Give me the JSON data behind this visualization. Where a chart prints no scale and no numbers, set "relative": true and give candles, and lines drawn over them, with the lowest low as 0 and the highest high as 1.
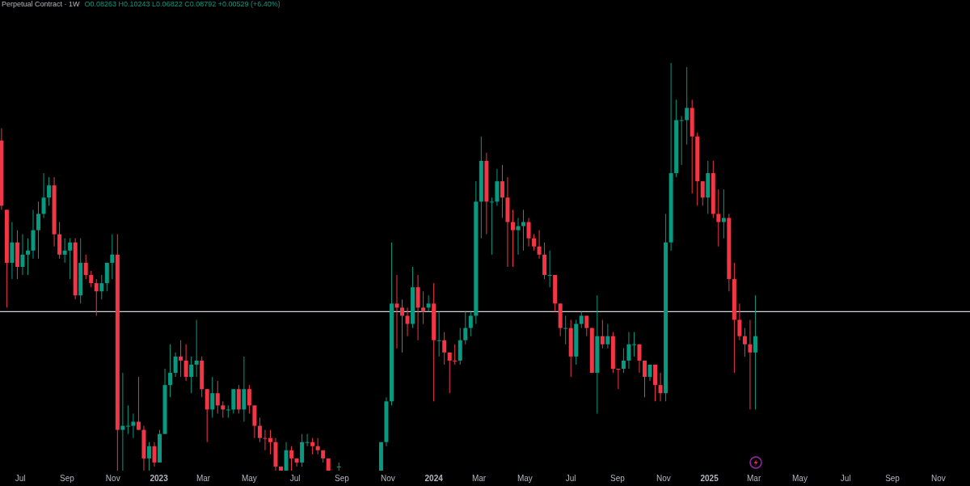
{
  "chart_data": {
    "type": "candlestick",
    "title": "Perpetual Contract · 1W",
    "subtitle": "O0.08263 H0.10243 L0.06822 C0.08792 +0.00529 (+6.40%)",
    "relative": true,
    "tick_labels": "x",
    "grid": false,
    "x": [
      "2022-06-06",
      "2022-06-13",
      "2022-06-20",
      "2022-06-27",
      "2022-07-04",
      "2022-07-11",
      "2022-07-18",
      "2022-07-25",
      "2022-08-01",
      "2022-08-08",
      "2022-08-15",
      "2022-08-22",
      "2022-08-29",
      "2022-09-05",
      "2022-09-12",
      "2022-09-19",
      "2022-09-26",
      "2022-10-03",
      "2022-10-10",
      "2022-10-17",
      "2022-10-24",
      "2022-10-31",
      "2022-11-07",
      "2022-11-14",
      "2022-11-21",
      "2022-11-28",
      "2022-12-05",
      "2022-12-12",
      "2022-12-19",
      "2022-12-26",
      "2023-01-02",
      "2023-01-09",
      "2023-01-16",
      "2023-01-23",
      "2023-01-30",
      "2023-02-06",
      "2023-02-13",
      "2023-02-20",
      "2023-02-27",
      "2023-03-06",
      "2023-03-13",
      "2023-03-20",
      "2023-03-27",
      "2023-04-03",
      "2023-04-10",
      "2023-04-17",
      "2023-04-24",
      "2023-05-01",
      "2023-05-08",
      "2023-05-15",
      "2023-05-22",
      "2023-05-29",
      "2023-06-05",
      "2023-06-12",
      "2023-06-19",
      "2023-06-26",
      "2023-07-03",
      "2023-07-10",
      "2023-07-17",
      "2023-07-24",
      "2023-07-31",
      "2023-08-07",
      "2023-08-14",
      "2023-08-28",
      "2023-10-23",
      "2023-10-30",
      "2023-11-06",
      "2023-11-13",
      "2023-11-20",
      "2023-11-27",
      "2023-12-04",
      "2023-12-11",
      "2023-12-18",
      "2023-12-25",
      "2024-01-01",
      "2024-01-08",
      "2024-01-15",
      "2024-01-22",
      "2024-01-29",
      "2024-02-05",
      "2024-02-12",
      "2024-02-19",
      "2024-02-26",
      "2024-03-04",
      "2024-03-11",
      "2024-03-18",
      "2024-03-25",
      "2024-04-01",
      "2024-04-08",
      "2024-04-15",
      "2024-04-22",
      "2024-04-29",
      "2024-05-06",
      "2024-05-13",
      "2024-05-20",
      "2024-05-27",
      "2024-06-03",
      "2024-06-10",
      "2024-06-17",
      "2024-06-24",
      "2024-07-01",
      "2024-07-08",
      "2024-07-15",
      "2024-07-22",
      "2024-07-29",
      "2024-08-05",
      "2024-08-12",
      "2024-08-19",
      "2024-08-26",
      "2024-09-02",
      "2024-09-09",
      "2024-09-16",
      "2024-09-23",
      "2024-09-30",
      "2024-10-07",
      "2024-10-14",
      "2024-10-21",
      "2024-10-28",
      "2024-11-04",
      "2024-11-11",
      "2024-11-18",
      "2024-11-25",
      "2024-12-02",
      "2024-12-09",
      "2024-12-16",
      "2024-12-23",
      "2024-12-30",
      "2025-01-06",
      "2025-01-13",
      "2025-01-20",
      "2025-01-27",
      "2025-02-03",
      "2025-02-10",
      "2025-02-17",
      "2025-02-24",
      "2025-03-03"
    ],
    "ohlc": [
      [
        0.81,
        0.84,
        0.64,
        0.65
      ],
      [
        0.64,
        0.64,
        0.4,
        0.51
      ],
      [
        0.51,
        0.61,
        0.47,
        0.56
      ],
      [
        0.56,
        0.59,
        0.47,
        0.5
      ],
      [
        0.5,
        0.58,
        0.48,
        0.53
      ],
      [
        0.53,
        0.57,
        0.48,
        0.54
      ],
      [
        0.54,
        0.64,
        0.52,
        0.59
      ],
      [
        0.59,
        0.66,
        0.52,
        0.63
      ],
      [
        0.63,
        0.73,
        0.62,
        0.67
      ],
      [
        0.67,
        0.72,
        0.65,
        0.7
      ],
      [
        0.7,
        0.72,
        0.55,
        0.58
      ],
      [
        0.58,
        0.61,
        0.52,
        0.53
      ],
      [
        0.53,
        0.57,
        0.51,
        0.54
      ],
      [
        0.54,
        0.57,
        0.47,
        0.56
      ],
      [
        0.56,
        0.57,
        0.42,
        0.43
      ],
      [
        0.43,
        0.57,
        0.41,
        0.51
      ],
      [
        0.51,
        0.53,
        0.47,
        0.48
      ],
      [
        0.48,
        0.49,
        0.45,
        0.46
      ],
      [
        0.46,
        0.47,
        0.38,
        0.44
      ],
      [
        0.44,
        0.48,
        0.42,
        0.46
      ],
      [
        0.46,
        0.51,
        0.44,
        0.51
      ],
      [
        0.51,
        0.58,
        0.47,
        0.53
      ],
      [
        0.53,
        0.58,
        0,
        0.1
      ],
      [
        0.1,
        0.24,
        0,
        0.11
      ],
      [
        0.11,
        0.16,
        0.09,
        0.11
      ],
      [
        0.11,
        0.14,
        0.08,
        0.12
      ],
      [
        0.12,
        0.23,
        0.1,
        0.1
      ],
      [
        0.1,
        0.11,
        0,
        0.03
      ],
      [
        0.03,
        0.07,
        0,
        0.06
      ],
      [
        0.06,
        0.07,
        0.01,
        0.02
      ],
      [
        0.02,
        0.1,
        0.02,
        0.09
      ],
      [
        0.09,
        0.25,
        0.09,
        0.21
      ],
      [
        0.21,
        0.31,
        0.18,
        0.24
      ],
      [
        0.24,
        0.29,
        0.23,
        0.28
      ],
      [
        0.28,
        0.32,
        0.23,
        0.27
      ],
      [
        0.27,
        0.31,
        0.22,
        0.23
      ],
      [
        0.23,
        0.28,
        0.19,
        0.26
      ],
      [
        0.26,
        0.37,
        0.23,
        0.27
      ],
      [
        0.27,
        0.28,
        0.18,
        0.2
      ],
      [
        0.2,
        0.2,
        0.07,
        0.15
      ],
      [
        0.15,
        0.23,
        0.13,
        0.19
      ],
      [
        0.19,
        0.22,
        0.14,
        0.16
      ],
      [
        0.16,
        0.17,
        0.13,
        0.15
      ],
      [
        0.15,
        0.16,
        0.13,
        0.15
      ],
      [
        0.15,
        0.2,
        0.14,
        0.2
      ],
      [
        0.2,
        0.21,
        0.14,
        0.15
      ],
      [
        0.15,
        0.28,
        0.12,
        0.2
      ],
      [
        0.2,
        0.21,
        0.14,
        0.16
      ],
      [
        0.16,
        0.16,
        0.08,
        0.11
      ],
      [
        0.11,
        0.13,
        0.07,
        0.08
      ],
      [
        0.08,
        0.1,
        0.05,
        0.08
      ],
      [
        0.08,
        0.1,
        0.04,
        0.07
      ],
      [
        0.07,
        0.08,
        0,
        0.01
      ],
      [
        0.01,
        0.01,
        0,
        0
      ],
      [
        0,
        0.07,
        0,
        0.05
      ],
      [
        0.05,
        0.06,
        0,
        0.03
      ],
      [
        0.03,
        0.03,
        0.01,
        0.02
      ],
      [
        0.02,
        0.09,
        0.01,
        0.07
      ],
      [
        0.07,
        0.09,
        0.06,
        0.07
      ],
      [
        0.07,
        0.08,
        0.04,
        0.06
      ],
      [
        0.06,
        0.08,
        0.04,
        0.05
      ],
      [
        0.05,
        0.05,
        0.02,
        0.03
      ],
      [
        0.03,
        0.03,
        0,
        0
      ],
      [
        0.01,
        0.02,
        0,
        0.01
      ],
      [
        0,
        0.07,
        0,
        0.07
      ],
      [
        0.07,
        0.18,
        0.06,
        0.17
      ],
      [
        0.17,
        0.56,
        0.16,
        0.41
      ],
      [
        0.41,
        0.48,
        0.3,
        0.4
      ],
      [
        0.4,
        0.42,
        0.29,
        0.38
      ],
      [
        0.38,
        0.4,
        0.33,
        0.36
      ],
      [
        0.36,
        0.5,
        0.35,
        0.45
      ],
      [
        0.45,
        0.48,
        0.32,
        0.4
      ],
      [
        0.4,
        0.44,
        0.36,
        0.39
      ],
      [
        0.4,
        0.43,
        0.39,
        0.41
      ],
      [
        0.41,
        0.46,
        0.17,
        0.32
      ],
      [
        0.32,
        0.39,
        0.28,
        0.32
      ],
      [
        0.32,
        0.34,
        0.26,
        0.29
      ],
      [
        0.29,
        0.29,
        0.19,
        0.27
      ],
      [
        0.27,
        0.31,
        0.26,
        0.27
      ],
      [
        0.27,
        0.35,
        0.26,
        0.32
      ],
      [
        0.32,
        0.39,
        0.31,
        0.35
      ],
      [
        0.35,
        0.39,
        0.33,
        0.38
      ],
      [
        0.38,
        0.71,
        0.36,
        0.66
      ],
      [
        0.66,
        0.82,
        0.57,
        0.76
      ],
      [
        0.76,
        0.78,
        0.58,
        0.66
      ],
      [
        0.66,
        0.67,
        0.53,
        0.66
      ],
      [
        0.66,
        0.74,
        0.65,
        0.71
      ],
      [
        0.71,
        0.75,
        0.62,
        0.67
      ],
      [
        0.67,
        0.72,
        0.5,
        0.61
      ],
      [
        0.61,
        0.64,
        0.5,
        0.59
      ],
      [
        0.59,
        0.62,
        0.53,
        0.6
      ],
      [
        0.6,
        0.64,
        0.54,
        0.61
      ],
      [
        0.61,
        0.62,
        0.55,
        0.57
      ],
      [
        0.57,
        0.58,
        0.54,
        0.55
      ],
      [
        0.55,
        0.59,
        0.52,
        0.53
      ],
      [
        0.53,
        0.56,
        0.47,
        0.48
      ],
      [
        0.48,
        0.54,
        0.45,
        0.48
      ],
      [
        0.48,
        0.48,
        0.39,
        0.41
      ],
      [
        0.41,
        0.41,
        0.33,
        0.35
      ],
      [
        0.35,
        0.38,
        0.31,
        0.35
      ],
      [
        0.35,
        0.37,
        0.23,
        0.28
      ],
      [
        0.28,
        0.37,
        0.26,
        0.36
      ],
      [
        0.36,
        0.39,
        0.35,
        0.38
      ],
      [
        0.38,
        0.38,
        0.33,
        0.35
      ],
      [
        0.35,
        0.35,
        0.24,
        0.24
      ],
      [
        0.24,
        0.43,
        0.14,
        0.33
      ],
      [
        0.33,
        0.37,
        0.3,
        0.31
      ],
      [
        0.31,
        0.36,
        0.3,
        0.33
      ],
      [
        0.33,
        0.34,
        0.24,
        0.25
      ],
      [
        0.25,
        0.25,
        0.2,
        0.25
      ],
      [
        0.25,
        0.3,
        0.24,
        0.27
      ],
      [
        0.27,
        0.34,
        0.25,
        0.31
      ],
      [
        0.31,
        0.34,
        0.28,
        0.31
      ],
      [
        0.31,
        0.31,
        0.24,
        0.27
      ],
      [
        0.27,
        0.27,
        0.18,
        0.23
      ],
      [
        0.23,
        0.26,
        0.22,
        0.26
      ],
      [
        0.26,
        0.26,
        0.17,
        0.21
      ],
      [
        0.21,
        0.24,
        0.17,
        0.19
      ],
      [
        0.19,
        0.63,
        0.17,
        0.56
      ],
      [
        0.56,
        1,
        0.54,
        0.73
      ],
      [
        0.73,
        0.91,
        0.72,
        0.86
      ],
      [
        0.86,
        0.87,
        0.75,
        0.86
      ],
      [
        0.86,
        0.99,
        0.8,
        0.89
      ],
      [
        0.89,
        0.91,
        0.68,
        0.82
      ],
      [
        0.82,
        0.83,
        0.65,
        0.71
      ],
      [
        0.71,
        0.71,
        0.65,
        0.67
      ],
      [
        0.67,
        0.76,
        0.63,
        0.73
      ],
      [
        0.73,
        0.76,
        0.62,
        0.63
      ],
      [
        0.63,
        0.69,
        0.55,
        0.61
      ],
      [
        0.61,
        0.69,
        0.57,
        0.62
      ],
      [
        0.62,
        0.63,
        0.44,
        0.47
      ],
      [
        0.47,
        0.51,
        0.24,
        0.37
      ],
      [
        0.37,
        0.41,
        0.32,
        0.33
      ],
      [
        0.33,
        0.35,
        0.28,
        0.31
      ],
      [
        0.31,
        0.37,
        0.15,
        0.29
      ],
      [
        0.29,
        0.43,
        0.15,
        0.33
      ]
    ],
    "colors": [
      "#f23645",
      "#f23645",
      "#089981",
      "#f23645",
      "#089981",
      "#089981",
      "#089981",
      "#089981",
      "#089981",
      "#089981",
      "#f23645",
      "#f23645",
      "#089981",
      "#089981",
      "#f23645",
      "#089981",
      "#f23645",
      "#f23645",
      "#f23645",
      "#089981",
      "#089981",
      "#089981",
      "#f23645",
      "#089981",
      "#089981",
      "#089981",
      "#f23645",
      "#f23645",
      "#089981",
      "#f23645",
      "#089981",
      "#089981",
      "#089981",
      "#089981",
      "#f23645",
      "#f23645",
      "#089981",
      "#089981",
      "#f23645",
      "#f23645",
      "#089981",
      "#f23645",
      "#f23645",
      "#089981",
      "#089981",
      "#f23645",
      "#089981",
      "#f23645",
      "#f23645",
      "#f23645",
      "#f23645",
      "#f23645",
      "#f23645",
      "#f23645",
      "#089981",
      "#f23645",
      "#f23645",
      "#089981",
      "#089981",
      "#f23645",
      "#f23645",
      "#f23645",
      "#f23645",
      "#089981",
      "#089981",
      "#089981",
      "#089981",
      "#f23645",
      "#f23645",
      "#f23645",
      "#089981",
      "#f23645",
      "#f23645",
      "#089981",
      "#f23645",
      "#089981",
      "#f23645",
      "#f23645",
      "#f23645",
      "#089981",
      "#089981",
      "#089981",
      "#089981",
      "#089981",
      "#f23645",
      "#089981",
      "#089981",
      "#f23645",
      "#f23645",
      "#f23645",
      "#089981",
      "#089981",
      "#f23645",
      "#f23645",
      "#f23645",
      "#f23645",
      "#089981",
      "#f23645",
      "#f23645",
      "#089981",
      "#f23645",
      "#089981",
      "#089981",
      "#f23645",
      "#f23645",
      "#089981",
      "#f23645",
      "#089981",
      "#f23645",
      "#f23645",
      "#089981",
      "#089981",
      "#089981",
      "#f23645",
      "#f23645",
      "#089981",
      "#f23645",
      "#f23645",
      "#089981",
      "#089981",
      "#089981",
      "#089981",
      "#089981",
      "#f23645",
      "#f23645",
      "#f23645",
      "#089981",
      "#f23645",
      "#f23645",
      "#089981",
      "#f23645",
      "#f23645",
      "#f23645",
      "#f23645",
      "#f23645",
      "#089981"
    ],
    "xlim": [
      "2022-06-04",
      "2025-12-13"
    ],
    "xticks": [
      {
        "value": "2022-07-01",
        "label": "Jul"
      },
      {
        "value": "2022-09-01",
        "label": "Sep"
      },
      {
        "value": "2022-11-01",
        "label": "Nov"
      },
      {
        "value": "2023-01-01",
        "label": "2023"
      },
      {
        "value": "2023-03-01",
        "label": "Mar"
      },
      {
        "value": "2023-05-01",
        "label": "May"
      },
      {
        "value": "2023-07-01",
        "label": "Jul"
      },
      {
        "value": "2023-09-01",
        "label": "Sep"
      },
      {
        "value": "2023-11-01",
        "label": "Nov"
      },
      {
        "value": "2024-01-01",
        "label": "2024"
      },
      {
        "value": "2024-03-01",
        "label": "Mar"
      },
      {
        "value": "2024-05-01",
        "label": "May"
      },
      {
        "value": "2024-07-01",
        "label": "Jul"
      },
      {
        "value": "2024-09-01",
        "label": "Sep"
      },
      {
        "value": "2024-11-01",
        "label": "Nov"
      },
      {
        "value": "2025-01-01",
        "label": "2025"
      },
      {
        "value": "2025-03-01",
        "label": "Mar"
      },
      {
        "value": "2025-05-01",
        "label": "May"
      },
      {
        "value": "2025-07-01",
        "label": "Jul"
      },
      {
        "value": "2025-09-01",
        "label": "Sep"
      },
      {
        "value": "2025-11-01",
        "label": "Nov"
      }
    ],
    "ref_lines": [
      {
        "axis": "y",
        "value": 0.39,
        "color": "#d1d4dc"
      }
    ]
  }
}
